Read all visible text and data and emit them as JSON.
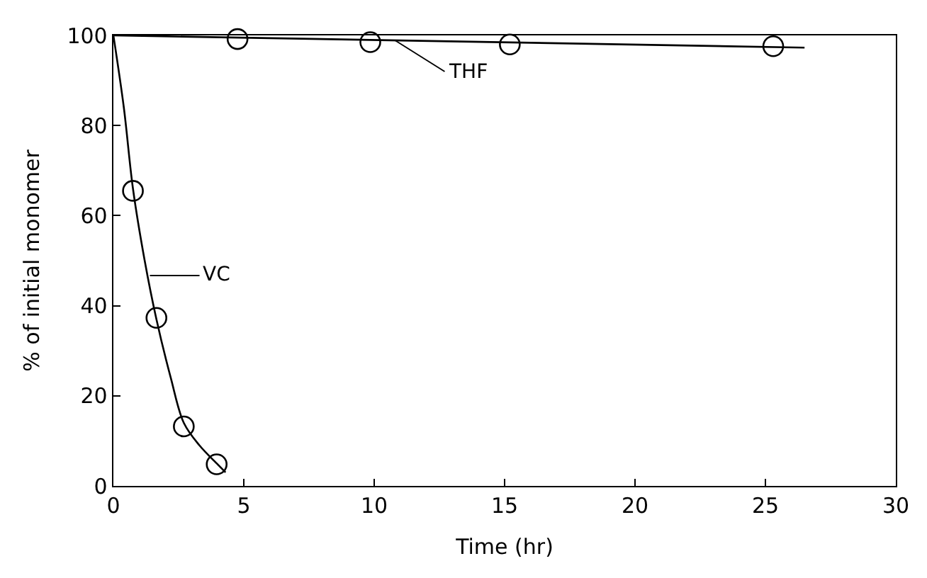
{
  "chart_data": {
    "type": "scatter",
    "xlabel": "Time (hr)",
    "ylabel": "% of initial monomer",
    "xlim": [
      0,
      30
    ],
    "xticks": [
      0,
      5,
      10,
      15,
      20,
      25,
      30
    ],
    "ylim": [
      0,
      100
    ],
    "yticks": [
      0,
      20,
      40,
      60,
      80,
      100
    ],
    "legend": false,
    "series": [
      {
        "color": "#000000",
        "marker": "circle",
        "x": [
          0.75,
          1.65,
          2.7,
          3.96
        ],
        "values": [
          65.5,
          37.3,
          13.2,
          4.8
        ]
      },
      {
        "type": "line",
        "color": "#000000",
        "marker": "none",
        "x": [
          0,
          0.4,
          0.75,
          1.2,
          1.65,
          2.2,
          2.7,
          3.3,
          3.96,
          4.3
        ],
        "values": [
          100,
          84,
          66,
          50,
          37,
          24,
          14,
          9,
          5,
          3
        ]
      },
      {
        "color": "#000000",
        "marker": "circle",
        "x": [
          4.76,
          9.85,
          15.2,
          25.3
        ],
        "values": [
          99.2,
          98.5,
          98,
          97.6
        ]
      },
      {
        "type": "line",
        "color": "#000000",
        "marker": "none",
        "x": [
          0,
          26.5
        ],
        "values": [
          100,
          97.3
        ]
      }
    ],
    "annotations": [
      {
        "text": "VC",
        "x": 1.4,
        "y": 46.7
      },
      {
        "text": "THF",
        "x": 10.8,
        "y": 98.9
      }
    ]
  }
}
